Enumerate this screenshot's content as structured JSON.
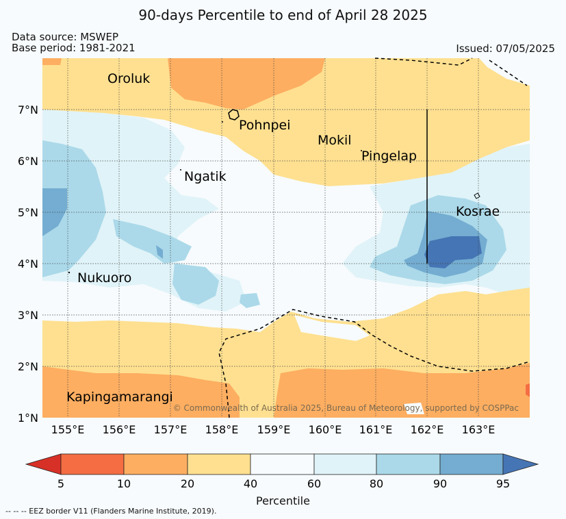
{
  "title": "90-days Percentile to end of April 28 2025",
  "data_source": "Data source: MSWEP",
  "base_period": "Base period: 1981-2021",
  "issued": "Issued: 07/05/2025",
  "copyright": "© Commonwealth of Australia 2025, Bureau of Meteorology, supported by COSPPac",
  "footnote": "--  --  -- EEZ border V11 (Flanders Marine Institute, 2019).",
  "map": {
    "lon_labels": [
      "155°E",
      "156°E",
      "157°E",
      "158°E",
      "159°E",
      "160°E",
      "161°E",
      "162°E",
      "163°E"
    ],
    "lat_labels": [
      "7°N",
      "6°N",
      "5°N",
      "4°N",
      "3°N",
      "2°N",
      "1°N"
    ],
    "places": [
      {
        "name": "Oroluk",
        "lon": 156.2,
        "lat": 7.55
      },
      {
        "name": "Pohnpei",
        "lon": 158.2,
        "lat": 6.85
      },
      {
        "name": "Mokil",
        "lon": 160.4,
        "lat": 6.35
      },
      {
        "name": "Pingelap",
        "lon": 160.7,
        "lat": 6.05
      },
      {
        "name": "Ngatik",
        "lon": 157.3,
        "lat": 5.7
      },
      {
        "name": "Kosrae",
        "lon": 162.9,
        "lat": 5.0
      },
      {
        "name": "Nukuoro",
        "lon": 154.9,
        "lat": 3.75
      },
      {
        "name": "Kapingamarangi",
        "lon": 154.8,
        "lat": 1.35
      }
    ]
  },
  "colorbar": {
    "label": "Percentile",
    "ticks": [
      "5",
      "10",
      "20",
      "40",
      "60",
      "80",
      "90",
      "95"
    ],
    "colors": {
      "lt5": "#d73027",
      "p5_10": "#f46d43",
      "p10_20": "#fdae61",
      "p20_40": "#fee090",
      "p40_60": "#f7fbfd",
      "p60_80": "#e0f3f8",
      "p80_90": "#abd9e9",
      "p90_95": "#74add1",
      "gt95": "#4575b4"
    }
  }
}
